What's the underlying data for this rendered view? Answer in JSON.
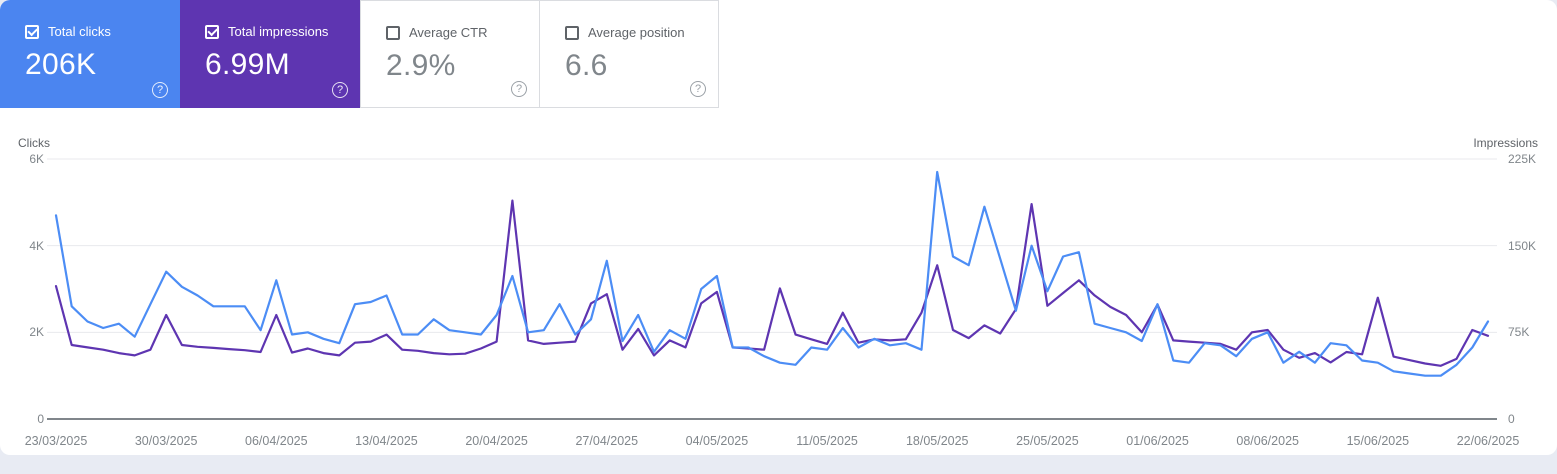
{
  "ui": {
    "help_glyph": "?"
  },
  "metric_cards": [
    {
      "label": "Total clicks",
      "value": "206K",
      "checked": true,
      "color": "#4b85f0"
    },
    {
      "label": "Total impressions",
      "value": "6.99M",
      "checked": true,
      "color": "#5e35b1"
    },
    {
      "label": "Average CTR",
      "value": "2.9%",
      "checked": false,
      "color": "#ffffff"
    },
    {
      "label": "Average position",
      "value": "6.6",
      "checked": false,
      "color": "#ffffff"
    }
  ],
  "chart_data": {
    "type": "line",
    "grid": true,
    "x_tick_labels": [
      "23/03/2025",
      "30/03/2025",
      "06/04/2025",
      "13/04/2025",
      "20/04/2025",
      "27/04/2025",
      "04/05/2025",
      "11/05/2025",
      "18/05/2025",
      "25/05/2025",
      "01/06/2025",
      "08/06/2025",
      "15/06/2025",
      "22/06/2025"
    ],
    "y_axis_left": {
      "title": "Clicks",
      "ticks": [
        "0",
        "2K",
        "4K",
        "6K"
      ],
      "range": [
        0,
        6000
      ]
    },
    "y_axis_right": {
      "title": "Impressions",
      "ticks": [
        "0",
        "75K",
        "150K",
        "225K"
      ],
      "range": [
        0,
        225000
      ]
    },
    "x": [
      "23/03/2025",
      "24/03/2025",
      "25/03/2025",
      "26/03/2025",
      "27/03/2025",
      "28/03/2025",
      "29/03/2025",
      "30/03/2025",
      "31/03/2025",
      "01/04/2025",
      "02/04/2025",
      "03/04/2025",
      "04/04/2025",
      "05/04/2025",
      "06/04/2025",
      "07/04/2025",
      "08/04/2025",
      "09/04/2025",
      "10/04/2025",
      "11/04/2025",
      "12/04/2025",
      "13/04/2025",
      "14/04/2025",
      "15/04/2025",
      "16/04/2025",
      "17/04/2025",
      "18/04/2025",
      "19/04/2025",
      "20/04/2025",
      "21/04/2025",
      "22/04/2025",
      "23/04/2025",
      "24/04/2025",
      "25/04/2025",
      "26/04/2025",
      "27/04/2025",
      "28/04/2025",
      "29/04/2025",
      "30/04/2025",
      "01/05/2025",
      "02/05/2025",
      "03/05/2025",
      "04/05/2025",
      "05/05/2025",
      "06/05/2025",
      "07/05/2025",
      "08/05/2025",
      "09/05/2025",
      "10/05/2025",
      "11/05/2025",
      "12/05/2025",
      "13/05/2025",
      "14/05/2025",
      "15/05/2025",
      "16/05/2025",
      "17/05/2025",
      "18/05/2025",
      "19/05/2025",
      "20/05/2025",
      "21/05/2025",
      "22/05/2025",
      "23/05/2025",
      "24/05/2025",
      "25/05/2025",
      "26/05/2025",
      "27/05/2025",
      "28/05/2025",
      "29/05/2025",
      "30/05/2025",
      "31/05/2025",
      "01/06/2025",
      "02/06/2025",
      "03/06/2025",
      "04/06/2025",
      "05/06/2025",
      "06/06/2025",
      "07/06/2025",
      "08/06/2025",
      "09/06/2025",
      "10/06/2025",
      "11/06/2025",
      "12/06/2025",
      "13/06/2025",
      "14/06/2025",
      "15/06/2025",
      "16/06/2025",
      "17/06/2025",
      "18/06/2025",
      "19/06/2025",
      "20/06/2025",
      "21/06/2025",
      "22/06/2025"
    ],
    "series": [
      {
        "id": "clicks-line",
        "name": "Total clicks",
        "axis": "left",
        "color": "#4c8df5",
        "values": [
          4700,
          2600,
          2250,
          2100,
          2200,
          1900,
          2650,
          3400,
          3050,
          2850,
          2600,
          2600,
          2600,
          2050,
          3200,
          1950,
          2000,
          1850,
          1750,
          2650,
          2700,
          2850,
          1950,
          1950,
          2300,
          2050,
          2000,
          1950,
          2400,
          3300,
          2000,
          2050,
          2650,
          1950,
          2300,
          3650,
          1800,
          2400,
          1550,
          2050,
          1850,
          3000,
          3300,
          1650,
          1650,
          1450,
          1300,
          1250,
          1650,
          1600,
          2100,
          1650,
          1850,
          1700,
          1750,
          1600,
          5700,
          3750,
          3550,
          4900,
          3700,
          2500,
          4000,
          2950,
          3750,
          3850,
          2200,
          2100,
          2000,
          1800,
          2650,
          1350,
          1300,
          1750,
          1700,
          1450,
          1850,
          2000,
          1300,
          1550,
          1300,
          1750,
          1700,
          1350,
          1300,
          1100,
          1050,
          1000,
          1000,
          1250,
          1650,
          2250
        ]
      },
      {
        "id": "impressions-line",
        "name": "Total impressions",
        "axis": "right",
        "color": "#5e35b1",
        "values": [
          115000,
          64000,
          62000,
          60000,
          57000,
          55000,
          60000,
          90000,
          64000,
          62500,
          61500,
          60500,
          59500,
          58000,
          90000,
          57500,
          61000,
          57000,
          55000,
          66000,
          67000,
          73000,
          60000,
          59000,
          57000,
          56000,
          56500,
          61000,
          67000,
          189000,
          68000,
          65000,
          66000,
          67000,
          100000,
          108000,
          60000,
          78000,
          55000,
          68000,
          62000,
          100000,
          110000,
          62000,
          61000,
          60000,
          113000,
          73000,
          69000,
          65000,
          92000,
          66000,
          69000,
          68000,
          69000,
          92000,
          133000,
          77000,
          70000,
          81000,
          74000,
          95000,
          186000,
          98000,
          109000,
          120000,
          107000,
          97000,
          90000,
          75000,
          99000,
          68000,
          67000,
          66000,
          65000,
          60000,
          75000,
          77000,
          60000,
          53000,
          57000,
          49000,
          58000,
          56000,
          105000,
          54000,
          51000,
          48000,
          46000,
          52000,
          77000,
          72000
        ]
      }
    ]
  }
}
